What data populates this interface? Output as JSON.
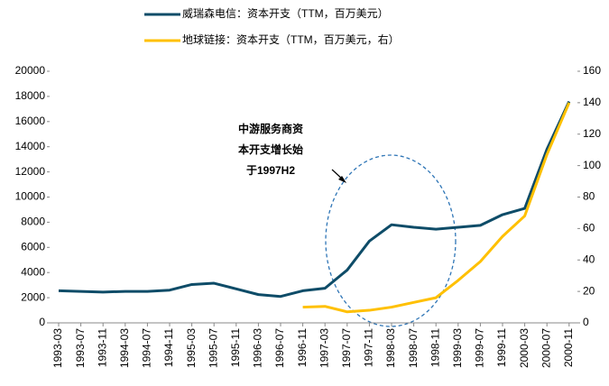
{
  "chart_data": {
    "type": "line",
    "categories": [
      "1993-03",
      "1993-07",
      "1993-11",
      "1994-03",
      "1994-07",
      "1994-11",
      "1995-03",
      "1995-07",
      "1995-11",
      "1996-03",
      "1996-07",
      "1996-11",
      "1997-03",
      "1997-07",
      "1997-11",
      "1998-03",
      "1998-07",
      "1998-11",
      "1999-03",
      "1999-07",
      "1999-11",
      "2000-03",
      "2000-07",
      "2000-11"
    ],
    "series": [
      {
        "name": "威瑞森电信：资本开支（TTM，百万美元）",
        "color": "#0e4c68",
        "values": [
          2550,
          2500,
          2450,
          2500,
          2500,
          2600,
          3050,
          3150,
          2700,
          2250,
          2100,
          2550,
          2750,
          4200,
          6500,
          7800,
          7600,
          7450,
          7600,
          7750,
          8600,
          9100,
          13800,
          17600
        ]
      },
      {
        "name": "地球链接：资本开支（TTM，百万美元，右）",
        "color": "#ffc000",
        "axis": "y2",
        "values": [
          null,
          null,
          null,
          null,
          null,
          null,
          null,
          null,
          null,
          null,
          null,
          10,
          10.5,
          7,
          8,
          10,
          13,
          16,
          27,
          39,
          55,
          68,
          107,
          140
        ]
      }
    ],
    "ylim": [
      0,
      20000
    ],
    "yticks": [
      0,
      2000,
      4000,
      6000,
      8000,
      10000,
      12000,
      14000,
      16000,
      18000,
      20000
    ],
    "y2lim": [
      0,
      160
    ],
    "y2ticks": [
      0,
      20,
      40,
      60,
      80,
      100,
      120,
      140,
      160
    ],
    "annotation": [
      "中游服务商资",
      "本开支增长始",
      "于1997H2"
    ],
    "legend": "top",
    "grid": false
  }
}
